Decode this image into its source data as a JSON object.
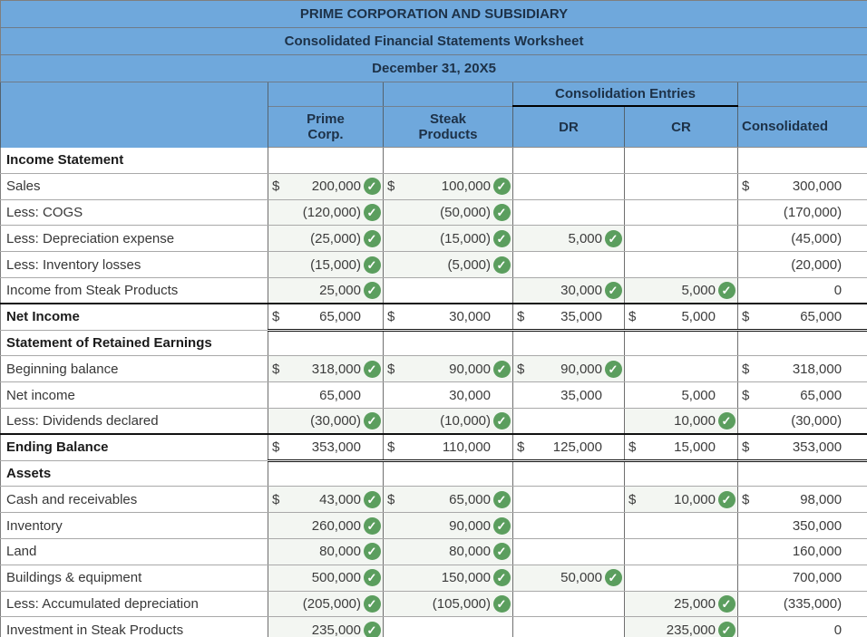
{
  "titles": [
    "PRIME CORPORATION AND SUBSIDIARY",
    "Consolidated Financial Statements Worksheet",
    "December 31, 20X5"
  ],
  "header": {
    "consolidation_entries": "Consolidation Entries",
    "prime": "Prime\nCorp.",
    "steak": "Steak\nProducts",
    "dr": "DR",
    "cr": "CR",
    "consolidated": "Consolidated"
  },
  "icons": {
    "check": "✓"
  },
  "colors": {
    "header_blue": "#6fa8dc",
    "header_text": "#1d3147",
    "check_green": "#5b9e5e",
    "input_fill": "#f3f6f2"
  },
  "rows": [
    {
      "type": "section",
      "label": "Income Statement",
      "cells": [
        null,
        null,
        null,
        null,
        null
      ]
    },
    {
      "type": "data",
      "label": "Sales",
      "cells": [
        {
          "dollar": "$",
          "value": "200,000",
          "check": true,
          "fill": true
        },
        {
          "dollar": "$",
          "value": "100,000",
          "check": true,
          "fill": true
        },
        null,
        null,
        {
          "dollar": "$",
          "value": "300,000"
        }
      ]
    },
    {
      "type": "data",
      "label": "Less: COGS",
      "cells": [
        {
          "value": "(120,000)",
          "check": true,
          "fill": true
        },
        {
          "value": "(50,000)",
          "check": true,
          "fill": true
        },
        null,
        null,
        {
          "value": "(170,000)"
        }
      ]
    },
    {
      "type": "data",
      "label": "Less: Depreciation expense",
      "cells": [
        {
          "value": "(25,000)",
          "check": true,
          "fill": true
        },
        {
          "value": "(15,000)",
          "check": true,
          "fill": true
        },
        {
          "value": "5,000",
          "check": true,
          "fill": true
        },
        null,
        {
          "value": "(45,000)"
        }
      ]
    },
    {
      "type": "data",
      "label": "Less: Inventory losses",
      "cells": [
        {
          "value": "(15,000)",
          "check": true,
          "fill": true
        },
        {
          "value": "(5,000)",
          "check": true,
          "fill": true
        },
        null,
        null,
        {
          "value": "(20,000)"
        }
      ]
    },
    {
      "type": "data",
      "label": "Income from Steak Products",
      "cells": [
        {
          "value": "25,000",
          "check": true,
          "fill": true
        },
        null,
        {
          "value": "30,000",
          "check": true,
          "fill": true
        },
        {
          "value": "5,000",
          "check": true,
          "fill": true
        },
        {
          "value": "0"
        }
      ]
    },
    {
      "type": "total",
      "label": "Net Income",
      "cells": [
        {
          "dollar": "$",
          "value": "65,000"
        },
        {
          "dollar": "$",
          "value": "30,000"
        },
        {
          "dollar": "$",
          "value": "35,000"
        },
        {
          "dollar": "$",
          "value": "5,000"
        },
        {
          "dollar": "$",
          "value": "65,000"
        }
      ]
    },
    {
      "type": "section",
      "label": "Statement of Retained Earnings",
      "cells": [
        null,
        null,
        null,
        null,
        null
      ]
    },
    {
      "type": "data",
      "label": "Beginning balance",
      "cells": [
        {
          "dollar": "$",
          "value": "318,000",
          "check": true,
          "fill": true
        },
        {
          "dollar": "$",
          "value": "90,000",
          "check": true,
          "fill": true
        },
        {
          "dollar": "$",
          "value": "90,000",
          "check": true,
          "fill": true
        },
        null,
        {
          "dollar": "$",
          "value": "318,000"
        }
      ]
    },
    {
      "type": "data",
      "label": "Net income",
      "cells": [
        {
          "value": "65,000"
        },
        {
          "value": "30,000"
        },
        {
          "value": "35,000"
        },
        {
          "value": "5,000"
        },
        {
          "dollar": "$",
          "value": "65,000"
        }
      ]
    },
    {
      "type": "data",
      "label": "Less: Dividends declared",
      "cells": [
        {
          "value": "(30,000)",
          "check": true,
          "fill": true
        },
        {
          "value": "(10,000)",
          "check": true,
          "fill": true
        },
        null,
        {
          "value": "10,000",
          "check": true,
          "fill": true
        },
        {
          "value": "(30,000)"
        }
      ]
    },
    {
      "type": "total",
      "label": "Ending Balance",
      "cells": [
        {
          "dollar": "$",
          "value": "353,000"
        },
        {
          "dollar": "$",
          "value": "110,000"
        },
        {
          "dollar": "$",
          "value": "125,000"
        },
        {
          "dollar": "$",
          "value": "15,000"
        },
        {
          "dollar": "$",
          "value": "353,000"
        }
      ]
    },
    {
      "type": "section",
      "label": "Assets",
      "cells": [
        null,
        null,
        null,
        null,
        null
      ]
    },
    {
      "type": "data",
      "label": "Cash and receivables",
      "cells": [
        {
          "dollar": "$",
          "value": "43,000",
          "check": true,
          "fill": true
        },
        {
          "dollar": "$",
          "value": "65,000",
          "check": true,
          "fill": true
        },
        null,
        {
          "dollar": "$",
          "value": "10,000",
          "check": true,
          "fill": true
        },
        {
          "dollar": "$",
          "value": "98,000"
        }
      ]
    },
    {
      "type": "data",
      "label": "Inventory",
      "cells": [
        {
          "value": "260,000",
          "check": true,
          "fill": true
        },
        {
          "value": "90,000",
          "check": true,
          "fill": true
        },
        null,
        null,
        {
          "value": "350,000"
        }
      ]
    },
    {
      "type": "data",
      "label": "Land",
      "cells": [
        {
          "value": "80,000",
          "check": true,
          "fill": true
        },
        {
          "value": "80,000",
          "check": true,
          "fill": true
        },
        null,
        null,
        {
          "value": "160,000"
        }
      ]
    },
    {
      "type": "data",
      "label": "Buildings & equipment",
      "cells": [
        {
          "value": "500,000",
          "check": true,
          "fill": true
        },
        {
          "value": "150,000",
          "check": true,
          "fill": true
        },
        {
          "value": "50,000",
          "check": true,
          "fill": true
        },
        null,
        {
          "value": "700,000"
        }
      ]
    },
    {
      "type": "data",
      "label": "Less: Accumulated depreciation",
      "cells": [
        {
          "value": "(205,000)",
          "check": true,
          "fill": true
        },
        {
          "value": "(105,000)",
          "check": true,
          "fill": true
        },
        null,
        {
          "value": "25,000",
          "check": true,
          "fill": true
        },
        {
          "value": "(335,000)"
        }
      ]
    },
    {
      "type": "data",
      "label": "Investment in Steak Products",
      "cells": [
        {
          "value": "235,000",
          "check": true,
          "fill": true
        },
        null,
        null,
        {
          "value": "235,000",
          "check": true,
          "fill": true
        },
        {
          "value": "0"
        }
      ]
    }
  ]
}
